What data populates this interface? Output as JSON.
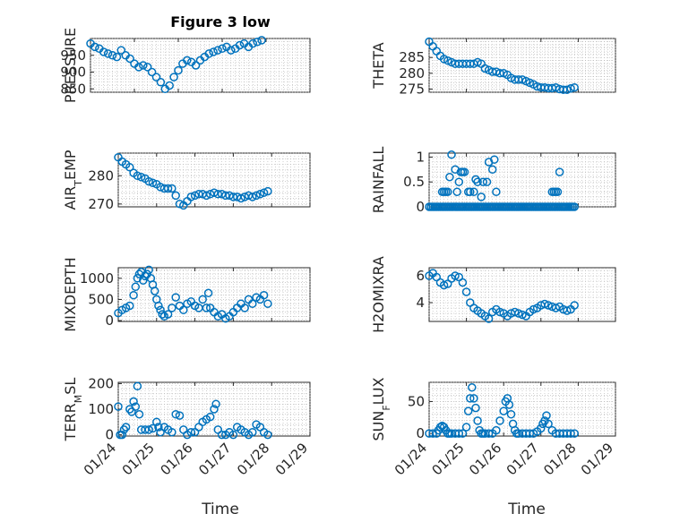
{
  "figure": {
    "title": "Figure 3 low"
  },
  "chart_data": [
    {
      "type": "scatter",
      "ylabel": "PRESSURE",
      "title": "Figure 3 low",
      "yticks": [
        850,
        900,
        950
      ],
      "ylim": [
        840,
        1000
      ],
      "xlim": [
        0,
        5
      ],
      "x": [
        0.0,
        0.1,
        0.2,
        0.3,
        0.4,
        0.5,
        0.6,
        0.7,
        0.8,
        0.9,
        1.0,
        1.1,
        1.2,
        1.3,
        1.4,
        1.5,
        1.6,
        1.7,
        1.8,
        1.9,
        2.0,
        2.1,
        2.2,
        2.3,
        2.4,
        2.5,
        2.6,
        2.7,
        2.8,
        2.9,
        3.0,
        3.1,
        3.2,
        3.3,
        3.4,
        3.5,
        3.6,
        3.7,
        3.8,
        3.9
      ],
      "y": [
        985,
        975,
        970,
        960,
        955,
        950,
        945,
        965,
        950,
        940,
        925,
        915,
        920,
        915,
        900,
        885,
        870,
        850,
        860,
        885,
        905,
        925,
        935,
        930,
        920,
        935,
        945,
        955,
        960,
        965,
        970,
        975,
        965,
        970,
        980,
        985,
        975,
        985,
        990,
        995
      ]
    },
    {
      "type": "scatter",
      "ylabel": "THETA",
      "yticks": [
        275,
        280,
        285
      ],
      "ylim": [
        274,
        291
      ],
      "xlim": [
        0,
        5
      ],
      "x": [
        0.0,
        0.1,
        0.2,
        0.3,
        0.4,
        0.5,
        0.6,
        0.7,
        0.8,
        0.9,
        1.0,
        1.1,
        1.2,
        1.3,
        1.4,
        1.5,
        1.6,
        1.7,
        1.8,
        1.9,
        2.0,
        2.1,
        2.2,
        2.3,
        2.4,
        2.5,
        2.6,
        2.7,
        2.8,
        2.9,
        3.0,
        3.1,
        3.2,
        3.3,
        3.4,
        3.5,
        3.6,
        3.7,
        3.8,
        3.9
      ],
      "y": [
        290,
        288.5,
        287,
        285.5,
        284.5,
        284,
        283.5,
        283,
        283,
        283,
        283,
        283,
        283,
        283.5,
        283,
        281.5,
        281,
        280.5,
        280.5,
        280,
        280,
        279.5,
        278.5,
        278,
        278,
        278,
        277.5,
        277,
        276.5,
        275.8,
        275.5,
        275.5,
        275.3,
        275.3,
        275.5,
        275,
        274.8,
        274.8,
        275.2,
        275.5
      ]
    },
    {
      "type": "scatter",
      "ylabel": "AIR_TEMP",
      "yticks": [
        270,
        280
      ],
      "ylim": [
        269,
        288
      ],
      "xlim": [
        0,
        5
      ],
      "x": [
        0.0,
        0.1,
        0.2,
        0.3,
        0.4,
        0.5,
        0.6,
        0.7,
        0.8,
        0.9,
        1.0,
        1.1,
        1.2,
        1.3,
        1.4,
        1.5,
        1.6,
        1.7,
        1.8,
        1.9,
        2.0,
        2.1,
        2.2,
        2.3,
        2.4,
        2.5,
        2.6,
        2.7,
        2.8,
        2.9,
        3.0,
        3.1,
        3.2,
        3.3,
        3.4,
        3.5,
        3.6,
        3.7,
        3.8,
        3.9
      ],
      "y": [
        286.5,
        285,
        284,
        283,
        281,
        280,
        279.5,
        279,
        278,
        277.5,
        277,
        276,
        275.5,
        275.5,
        275.5,
        273,
        270,
        269.5,
        271,
        272.5,
        273,
        273.5,
        273.5,
        273,
        273.5,
        274,
        273.5,
        273.5,
        273,
        273,
        272.5,
        272.5,
        272,
        272.5,
        273,
        272.5,
        273,
        273.5,
        274,
        274.5
      ]
    },
    {
      "type": "scatter",
      "ylabel": "RAINFALL",
      "yticks": [
        0,
        0.5,
        1
      ],
      "ytick_labels": [
        "0",
        "0.5",
        "1"
      ],
      "ylim": [
        0,
        1.08
      ],
      "xlim": [
        0,
        5
      ],
      "x": [
        0.0,
        0.05,
        0.1,
        0.15,
        0.2,
        0.25,
        0.3,
        0.35,
        0.4,
        0.45,
        0.5,
        0.55,
        0.6,
        0.65,
        0.7,
        0.75,
        0.8,
        0.85,
        0.9,
        0.95,
        1.0,
        1.05,
        1.1,
        1.15,
        1.2,
        1.25,
        1.3,
        1.35,
        1.4,
        1.45,
        1.5,
        1.55,
        1.6,
        1.65,
        1.7,
        1.75,
        1.8,
        1.85,
        1.9,
        1.95,
        2.0,
        2.05,
        2.1,
        2.15,
        2.2,
        2.25,
        2.3,
        2.35,
        2.4,
        2.45,
        2.5,
        2.55,
        2.6,
        2.65,
        2.7,
        2.75,
        2.8,
        2.85,
        2.9,
        2.95,
        3.0,
        3.05,
        3.1,
        3.15,
        3.2,
        3.25,
        3.3,
        3.35,
        3.4,
        3.45,
        3.5,
        3.55,
        3.6,
        3.65,
        3.7,
        3.75,
        3.8,
        3.85,
        3.9,
        0.4,
        0.45,
        0.55,
        0.6,
        0.7,
        0.75,
        0.8,
        0.85,
        0.9,
        0.95,
        1.05,
        1.1,
        1.2,
        1.25,
        1.3,
        1.4,
        1.45,
        1.55,
        1.6,
        1.7,
        1.75,
        1.8,
        3.3,
        3.35,
        3.4,
        3.45,
        3.5,
        0.35,
        0.5
      ],
      "y": [
        0,
        0,
        0,
        0,
        0,
        0,
        0,
        0,
        0,
        0,
        0,
        0,
        0,
        0,
        0,
        0,
        0,
        0,
        0,
        0,
        0,
        0,
        0,
        0,
        0,
        0,
        0,
        0,
        0,
        0,
        0,
        0,
        0,
        0,
        0,
        0,
        0,
        0,
        0,
        0,
        0,
        0,
        0,
        0,
        0,
        0,
        0,
        0,
        0,
        0,
        0,
        0,
        0,
        0,
        0,
        0,
        0,
        0,
        0,
        0,
        0,
        0,
        0,
        0,
        0,
        0,
        0,
        0,
        0,
        0,
        0,
        0,
        0,
        0,
        0,
        0,
        0,
        0,
        0,
        0.3,
        0.3,
        0.6,
        1.05,
        0.75,
        0.3,
        0.5,
        0.7,
        0.7,
        0.7,
        0.3,
        0.3,
        0.3,
        0.55,
        0.5,
        0.2,
        0.5,
        0.5,
        0.9,
        0.75,
        0.95,
        0.3,
        0.3,
        0.3,
        0.3,
        0.3,
        0.7,
        0.3,
        0.3
      ]
    },
    {
      "type": "scatter",
      "ylabel": "MIXDEPTH",
      "yticks": [
        0,
        500,
        1000
      ],
      "ylim": [
        -20,
        1250
      ],
      "xlim": [
        0,
        5
      ],
      "x": [
        0.0,
        0.1,
        0.2,
        0.3,
        0.4,
        0.45,
        0.5,
        0.55,
        0.6,
        0.65,
        0.7,
        0.75,
        0.8,
        0.85,
        0.9,
        0.95,
        1.0,
        1.05,
        1.1,
        1.15,
        1.2,
        1.3,
        1.4,
        1.5,
        1.6,
        1.7,
        1.8,
        1.9,
        2.0,
        2.1,
        2.2,
        2.3,
        2.35,
        2.4,
        2.5,
        2.6,
        2.7,
        2.8,
        2.9,
        3.0,
        3.1,
        3.2,
        3.3,
        3.4,
        3.5,
        3.6,
        3.7,
        3.8,
        3.9
      ],
      "y": [
        180,
        250,
        300,
        350,
        600,
        800,
        1000,
        1100,
        1150,
        950,
        1050,
        1100,
        1200,
        1000,
        850,
        700,
        500,
        350,
        250,
        150,
        100,
        150,
        300,
        550,
        350,
        250,
        400,
        450,
        350,
        300,
        500,
        300,
        650,
        300,
        200,
        100,
        150,
        50,
        100,
        200,
        300,
        400,
        300,
        500,
        400,
        550,
        500,
        600,
        400
      ]
    },
    {
      "type": "scatter",
      "ylabel": "H2OMIXRA",
      "yticks": [
        4,
        6
      ],
      "ylim": [
        2.6,
        6.6
      ],
      "xlim": [
        0,
        5
      ],
      "x": [
        0.0,
        0.1,
        0.2,
        0.3,
        0.4,
        0.5,
        0.6,
        0.7,
        0.8,
        0.9,
        1.0,
        1.1,
        1.2,
        1.3,
        1.4,
        1.5,
        1.6,
        1.7,
        1.8,
        1.9,
        2.0,
        2.1,
        2.2,
        2.3,
        2.4,
        2.5,
        2.6,
        2.7,
        2.8,
        2.9,
        3.0,
        3.1,
        3.2,
        3.3,
        3.4,
        3.5,
        3.6,
        3.7,
        3.8,
        3.9
      ],
      "y": [
        6.0,
        6.2,
        5.9,
        5.5,
        5.3,
        5.4,
        5.8,
        6.0,
        5.9,
        5.5,
        4.8,
        4.0,
        3.6,
        3.4,
        3.2,
        3.0,
        2.8,
        3.3,
        3.5,
        3.3,
        3.2,
        3.0,
        3.2,
        3.3,
        3.2,
        3.1,
        3.0,
        3.3,
        3.5,
        3.6,
        3.8,
        3.9,
        3.8,
        3.7,
        3.6,
        3.7,
        3.5,
        3.4,
        3.5,
        3.8
      ]
    },
    {
      "type": "scatter",
      "ylabel": "TERR_MSL",
      "yticks": [
        0,
        100,
        200
      ],
      "ylim": [
        -5,
        205
      ],
      "xlim": [
        0,
        5
      ],
      "x": [
        0.0,
        0.05,
        0.1,
        0.15,
        0.2,
        0.3,
        0.35,
        0.4,
        0.45,
        0.5,
        0.55,
        0.6,
        0.7,
        0.8,
        0.9,
        1.0,
        1.05,
        1.1,
        1.2,
        1.3,
        1.4,
        1.5,
        1.6,
        1.7,
        1.8,
        1.9,
        2.0,
        2.1,
        2.2,
        2.3,
        2.4,
        2.5,
        2.55,
        2.6,
        2.7,
        2.8,
        2.9,
        3.0,
        3.1,
        3.2,
        3.3,
        3.4,
        3.5,
        3.6,
        3.7,
        3.8,
        3.9
      ],
      "y": [
        110,
        0,
        0,
        20,
        30,
        100,
        90,
        130,
        110,
        190,
        80,
        20,
        20,
        20,
        25,
        50,
        30,
        10,
        30,
        20,
        10,
        80,
        75,
        20,
        0,
        10,
        10,
        30,
        50,
        60,
        70,
        100,
        120,
        20,
        0,
        0,
        10,
        0,
        30,
        20,
        10,
        0,
        10,
        40,
        30,
        10,
        0
      ]
    },
    {
      "type": "scatter",
      "ylabel": "SUN_FLUX",
      "yticks": [
        0,
        50
      ],
      "ylim": [
        -4,
        80
      ],
      "xlim": [
        0,
        5
      ],
      "x": [
        0.0,
        0.1,
        0.2,
        0.25,
        0.3,
        0.35,
        0.4,
        0.45,
        0.5,
        0.55,
        0.6,
        0.7,
        0.8,
        0.9,
        1.0,
        1.05,
        1.1,
        1.15,
        1.2,
        1.25,
        1.3,
        1.35,
        1.4,
        1.45,
        1.5,
        1.6,
        1.7,
        1.8,
        1.9,
        2.0,
        2.05,
        2.1,
        2.15,
        2.2,
        2.25,
        2.3,
        2.35,
        2.4,
        2.5,
        2.6,
        2.7,
        2.8,
        2.9,
        3.0,
        3.05,
        3.1,
        3.15,
        3.2,
        3.3,
        3.4,
        3.5,
        3.6,
        3.7,
        3.8,
        3.9
      ],
      "y": [
        0,
        0,
        0,
        5,
        10,
        12,
        10,
        5,
        0,
        0,
        0,
        0,
        0,
        0,
        10,
        35,
        55,
        72,
        55,
        40,
        20,
        5,
        0,
        0,
        0,
        0,
        0,
        5,
        20,
        35,
        50,
        55,
        45,
        30,
        15,
        5,
        0,
        0,
        0,
        0,
        0,
        0,
        3,
        8,
        15,
        20,
        28,
        15,
        5,
        0,
        0,
        0,
        0,
        0,
        0
      ]
    }
  ],
  "shared_x": {
    "ticks": [
      0,
      1,
      2,
      3,
      4,
      5
    ],
    "labels": [
      "01/24",
      "01/25",
      "01/26",
      "01/27",
      "01/28",
      "01/29"
    ],
    "xlabel": "Time"
  }
}
